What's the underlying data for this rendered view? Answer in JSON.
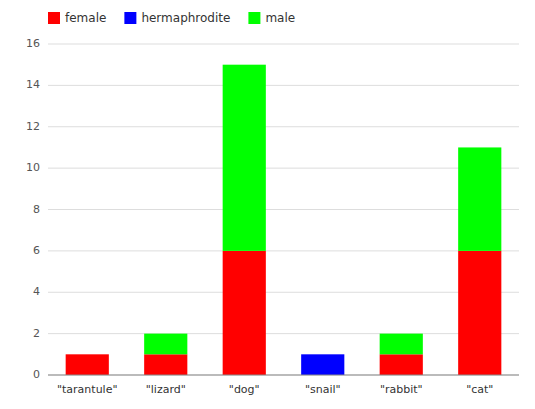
{
  "chart_data": {
    "type": "bar",
    "stacked": true,
    "grid": true,
    "legend": "top-left",
    "categories": [
      "\"tarantule\"",
      "\"lizard\"",
      "\"dog\"",
      "\"snail\"",
      "\"rabbit\"",
      "\"cat\""
    ],
    "series": [
      {
        "name": "female",
        "color": "#ff0000",
        "values": [
          1,
          1,
          6,
          0,
          1,
          6
        ]
      },
      {
        "name": "hermaphrodite",
        "color": "#0000ff",
        "values": [
          0,
          0,
          0,
          1,
          0,
          0
        ]
      },
      {
        "name": "male",
        "color": "#00ff00",
        "values": [
          0,
          1,
          9,
          0,
          1,
          5
        ]
      }
    ],
    "ylim": [
      0,
      16
    ],
    "yticks": [
      0,
      2,
      4,
      6,
      8,
      10,
      12,
      14,
      16
    ]
  }
}
